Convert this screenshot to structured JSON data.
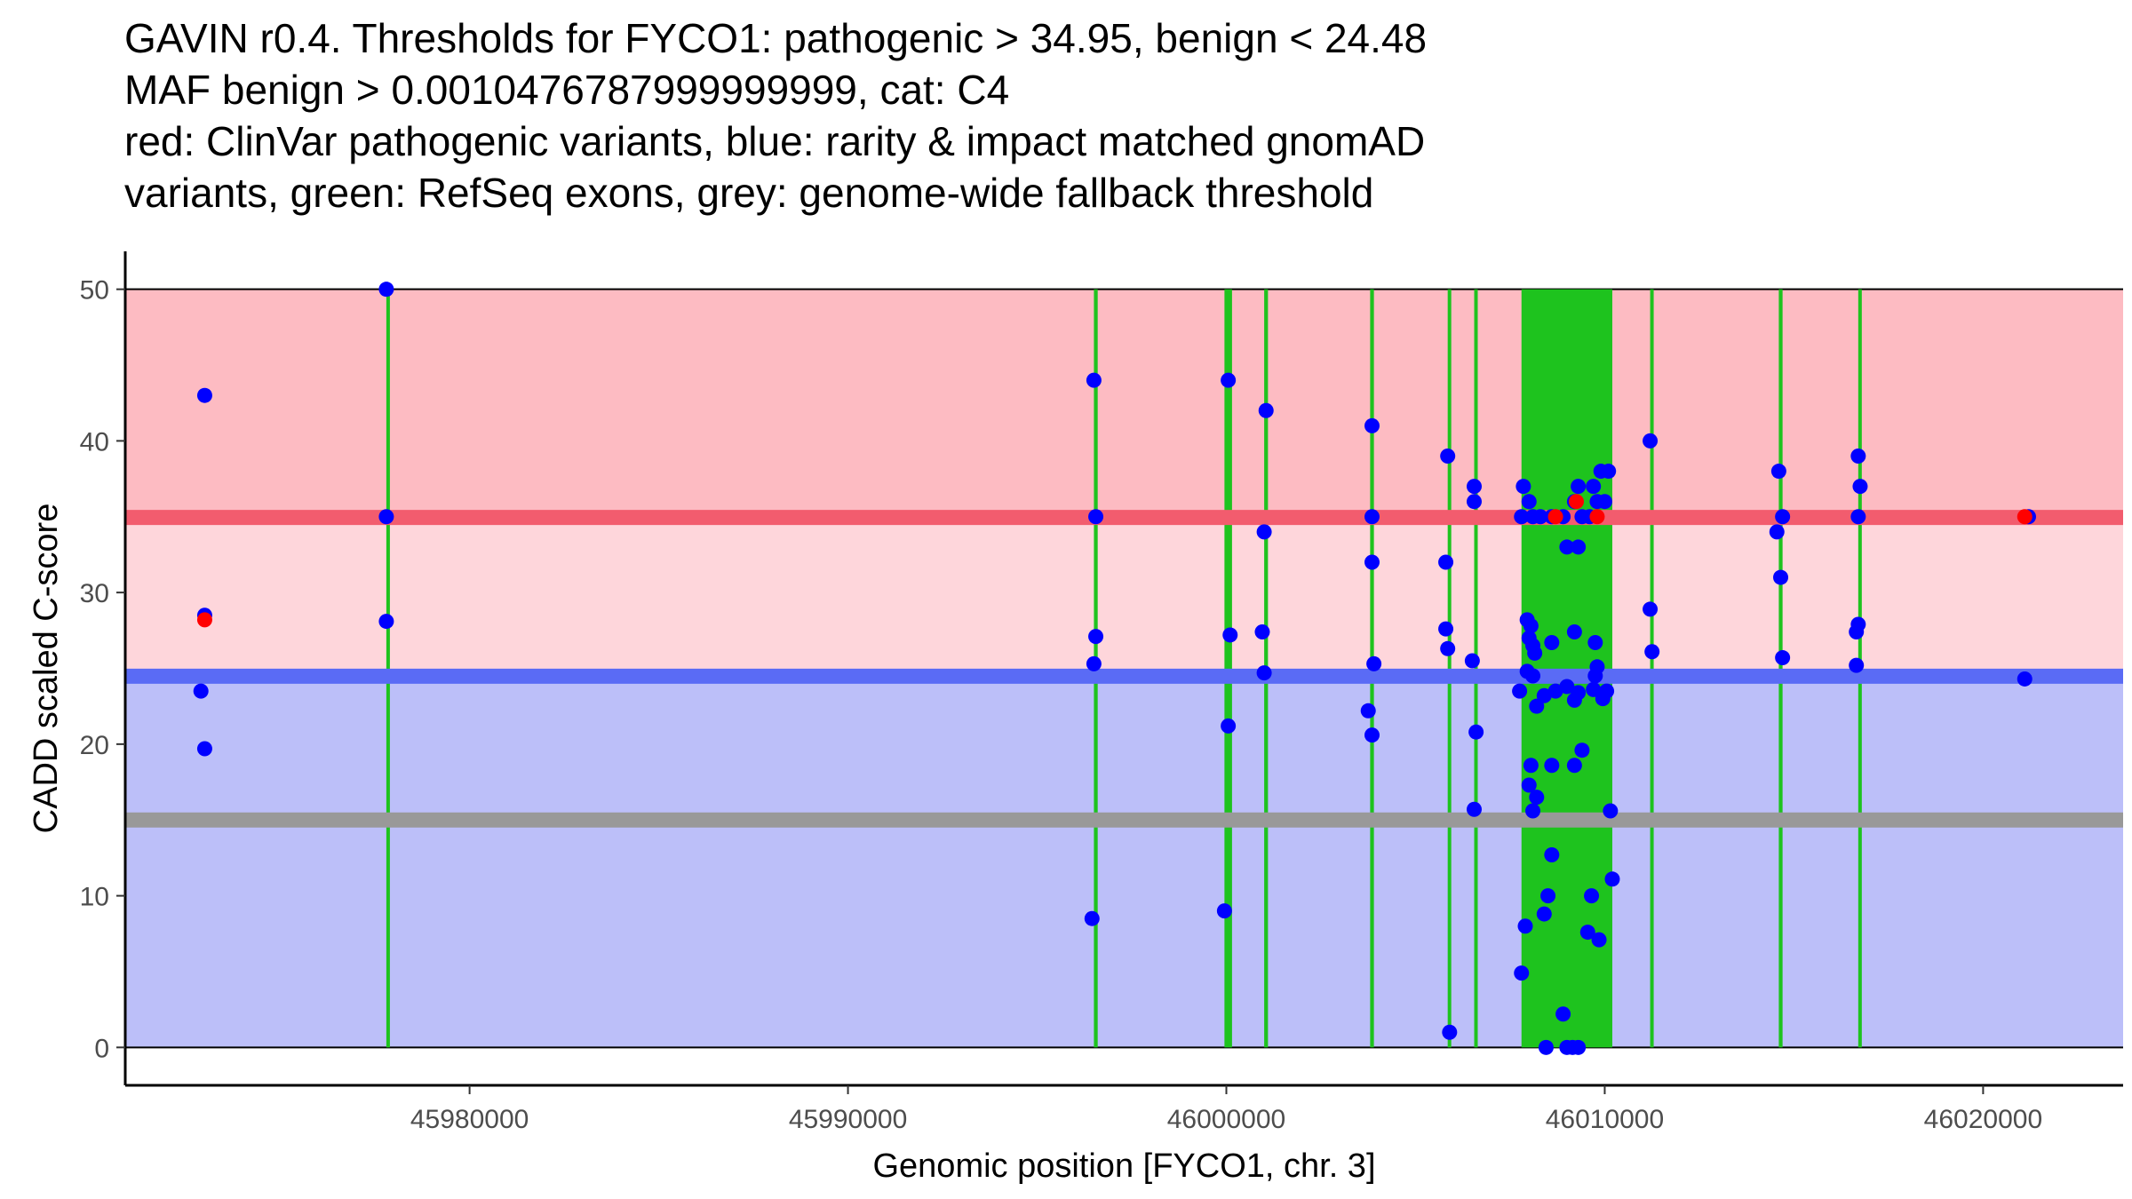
{
  "chart_data": {
    "type": "scatter",
    "title_lines": [
      "GAVIN r0.4. Thresholds for FYCO1: pathogenic > 34.95, benign < 24.48",
      "MAF benign > 0.0010476787999999999, cat: C4",
      "red: ClinVar pathogenic variants, blue: rarity & impact matched gnomAD",
      "variants, green: RefSeq exons, grey: genome-wide fallback threshold"
    ],
    "xlabel": "Genomic position [FYCO1, chr. 3]",
    "ylabel": "CADD scaled C-score",
    "xlim": [
      45970900,
      46023700
    ],
    "ylim": [
      -2.5,
      52.5
    ],
    "x_ticks": [
      45980000,
      45990000,
      46000000,
      46010000,
      46020000
    ],
    "x_tick_labels": [
      "45980000",
      "45990000",
      "46000000",
      "46010000",
      "46020000"
    ],
    "y_ticks": [
      0,
      10,
      20,
      30,
      40,
      50
    ],
    "y_tick_labels": [
      "0",
      "10",
      "20",
      "30",
      "40",
      "50"
    ],
    "thresholds": {
      "pathogenic": 34.95,
      "benign": 24.48,
      "fallback": 15.0,
      "pathogenic_color": "#f25c6e",
      "benign_color": "#5a6bf5",
      "fallback_color": "#999999"
    },
    "regions": [
      {
        "name": "pathogenic-zone",
        "y0": 34.95,
        "y1": 50,
        "color": "#fdbbc2"
      },
      {
        "name": "uncertain-zone",
        "y0": 24.48,
        "y1": 34.95,
        "color": "#fed6db"
      },
      {
        "name": "benign-zone",
        "y0": 0,
        "y1": 24.48,
        "color": "#bcbff9"
      }
    ],
    "exon_color": "#1ec31e",
    "exons": [
      [
        45977800,
        45977850
      ],
      [
        45996500,
        45996600
      ],
      [
        45999950,
        46000150
      ],
      [
        46001000,
        46001100
      ],
      [
        46003800,
        46003900
      ],
      [
        46005850,
        46005900
      ],
      [
        46006550,
        46006600
      ],
      [
        46007800,
        46010200
      ],
      [
        46011200,
        46011250
      ],
      [
        46014600,
        46014700
      ],
      [
        46016700,
        46016750
      ]
    ],
    "series": [
      {
        "name": "gnomAD",
        "color": "#0000ff",
        "points": [
          [
            45973000,
            43
          ],
          [
            45973000,
            28.5
          ],
          [
            45972900,
            23.5
          ],
          [
            45973000,
            19.7
          ],
          [
            45977800,
            50
          ],
          [
            45977800,
            35
          ],
          [
            45977800,
            28.1
          ],
          [
            45996500,
            44
          ],
          [
            45996550,
            35
          ],
          [
            45996550,
            27.1
          ],
          [
            45996500,
            25.3
          ],
          [
            45996450,
            8.5
          ],
          [
            46000050,
            44
          ],
          [
            46000100,
            27.2
          ],
          [
            46000050,
            21.2
          ],
          [
            45999950,
            9
          ],
          [
            46001050,
            42
          ],
          [
            46001000,
            34
          ],
          [
            46000950,
            27.4
          ],
          [
            46001000,
            24.7
          ],
          [
            46003850,
            41
          ],
          [
            46003850,
            35
          ],
          [
            46003850,
            32
          ],
          [
            46003900,
            25.3
          ],
          [
            46003750,
            22.2
          ],
          [
            46003850,
            20.6
          ],
          [
            46005850,
            39
          ],
          [
            46005800,
            32
          ],
          [
            46005800,
            27.6
          ],
          [
            46005850,
            26.3
          ],
          [
            46005900,
            1
          ],
          [
            46006550,
            37
          ],
          [
            46006550,
            36
          ],
          [
            46006500,
            25.5
          ],
          [
            46006600,
            20.8
          ],
          [
            46006550,
            15.7
          ],
          [
            46007800,
            35
          ],
          [
            46007850,
            37
          ],
          [
            46008000,
            36
          ],
          [
            46008100,
            35
          ],
          [
            46008300,
            35
          ],
          [
            46008600,
            35
          ],
          [
            46008900,
            35
          ],
          [
            46009200,
            36
          ],
          [
            46009400,
            35
          ],
          [
            46009600,
            35
          ],
          [
            46009800,
            36
          ],
          [
            46010000,
            36
          ],
          [
            46010100,
            38
          ],
          [
            46009900,
            38
          ],
          [
            46009300,
            37
          ],
          [
            46009700,
            37
          ],
          [
            46009000,
            33
          ],
          [
            46009300,
            33
          ],
          [
            46007950,
            28.2
          ],
          [
            46008050,
            27.8
          ],
          [
            46008000,
            27
          ],
          [
            46008100,
            26.5
          ],
          [
            46008150,
            26
          ],
          [
            46008600,
            26.7
          ],
          [
            46009200,
            27.4
          ],
          [
            46009750,
            26.7
          ],
          [
            46009800,
            25.1
          ],
          [
            46009750,
            24.5
          ],
          [
            46008100,
            24.5
          ],
          [
            46007950,
            24.8
          ],
          [
            46007750,
            23.5
          ],
          [
            46008400,
            23.2
          ],
          [
            46008700,
            23.5
          ],
          [
            46009000,
            23.8
          ],
          [
            46009300,
            23.4
          ],
          [
            46009700,
            23.6
          ],
          [
            46009950,
            23
          ],
          [
            46010050,
            23.5
          ],
          [
            46009200,
            22.9
          ],
          [
            46008200,
            22.5
          ],
          [
            46009400,
            19.6
          ],
          [
            46008050,
            18.6
          ],
          [
            46008600,
            18.6
          ],
          [
            46009200,
            18.6
          ],
          [
            46008000,
            17.3
          ],
          [
            46008200,
            16.5
          ],
          [
            46008100,
            15.6
          ],
          [
            46010150,
            15.6
          ],
          [
            46008600,
            12.7
          ],
          [
            46010200,
            11.1
          ],
          [
            46008500,
            10
          ],
          [
            46009650,
            10
          ],
          [
            46008400,
            8.8
          ],
          [
            46007900,
            8
          ],
          [
            46009550,
            7.6
          ],
          [
            46009850,
            7.1
          ],
          [
            46007800,
            4.9
          ],
          [
            46008900,
            2.2
          ],
          [
            46008450,
            0
          ],
          [
            46009000,
            0
          ],
          [
            46009150,
            0
          ],
          [
            46009300,
            0
          ],
          [
            46011200,
            40
          ],
          [
            46011200,
            28.9
          ],
          [
            46011250,
            26.1
          ],
          [
            46014600,
            38
          ],
          [
            46014700,
            35
          ],
          [
            46014550,
            34
          ],
          [
            46014650,
            31
          ],
          [
            46014700,
            25.7
          ],
          [
            46016700,
            39
          ],
          [
            46016750,
            37
          ],
          [
            46016700,
            35
          ],
          [
            46016700,
            27.9
          ],
          [
            46016650,
            27.4
          ],
          [
            46016650,
            25.2
          ],
          [
            46021200,
            35
          ],
          [
            46021100,
            24.3
          ]
        ]
      },
      {
        "name": "ClinVar",
        "color": "#ff0000",
        "points": [
          [
            45973000,
            28.2
          ],
          [
            46008700,
            35
          ],
          [
            46009250,
            36
          ],
          [
            46009800,
            35
          ],
          [
            46021100,
            35
          ]
        ]
      }
    ]
  }
}
